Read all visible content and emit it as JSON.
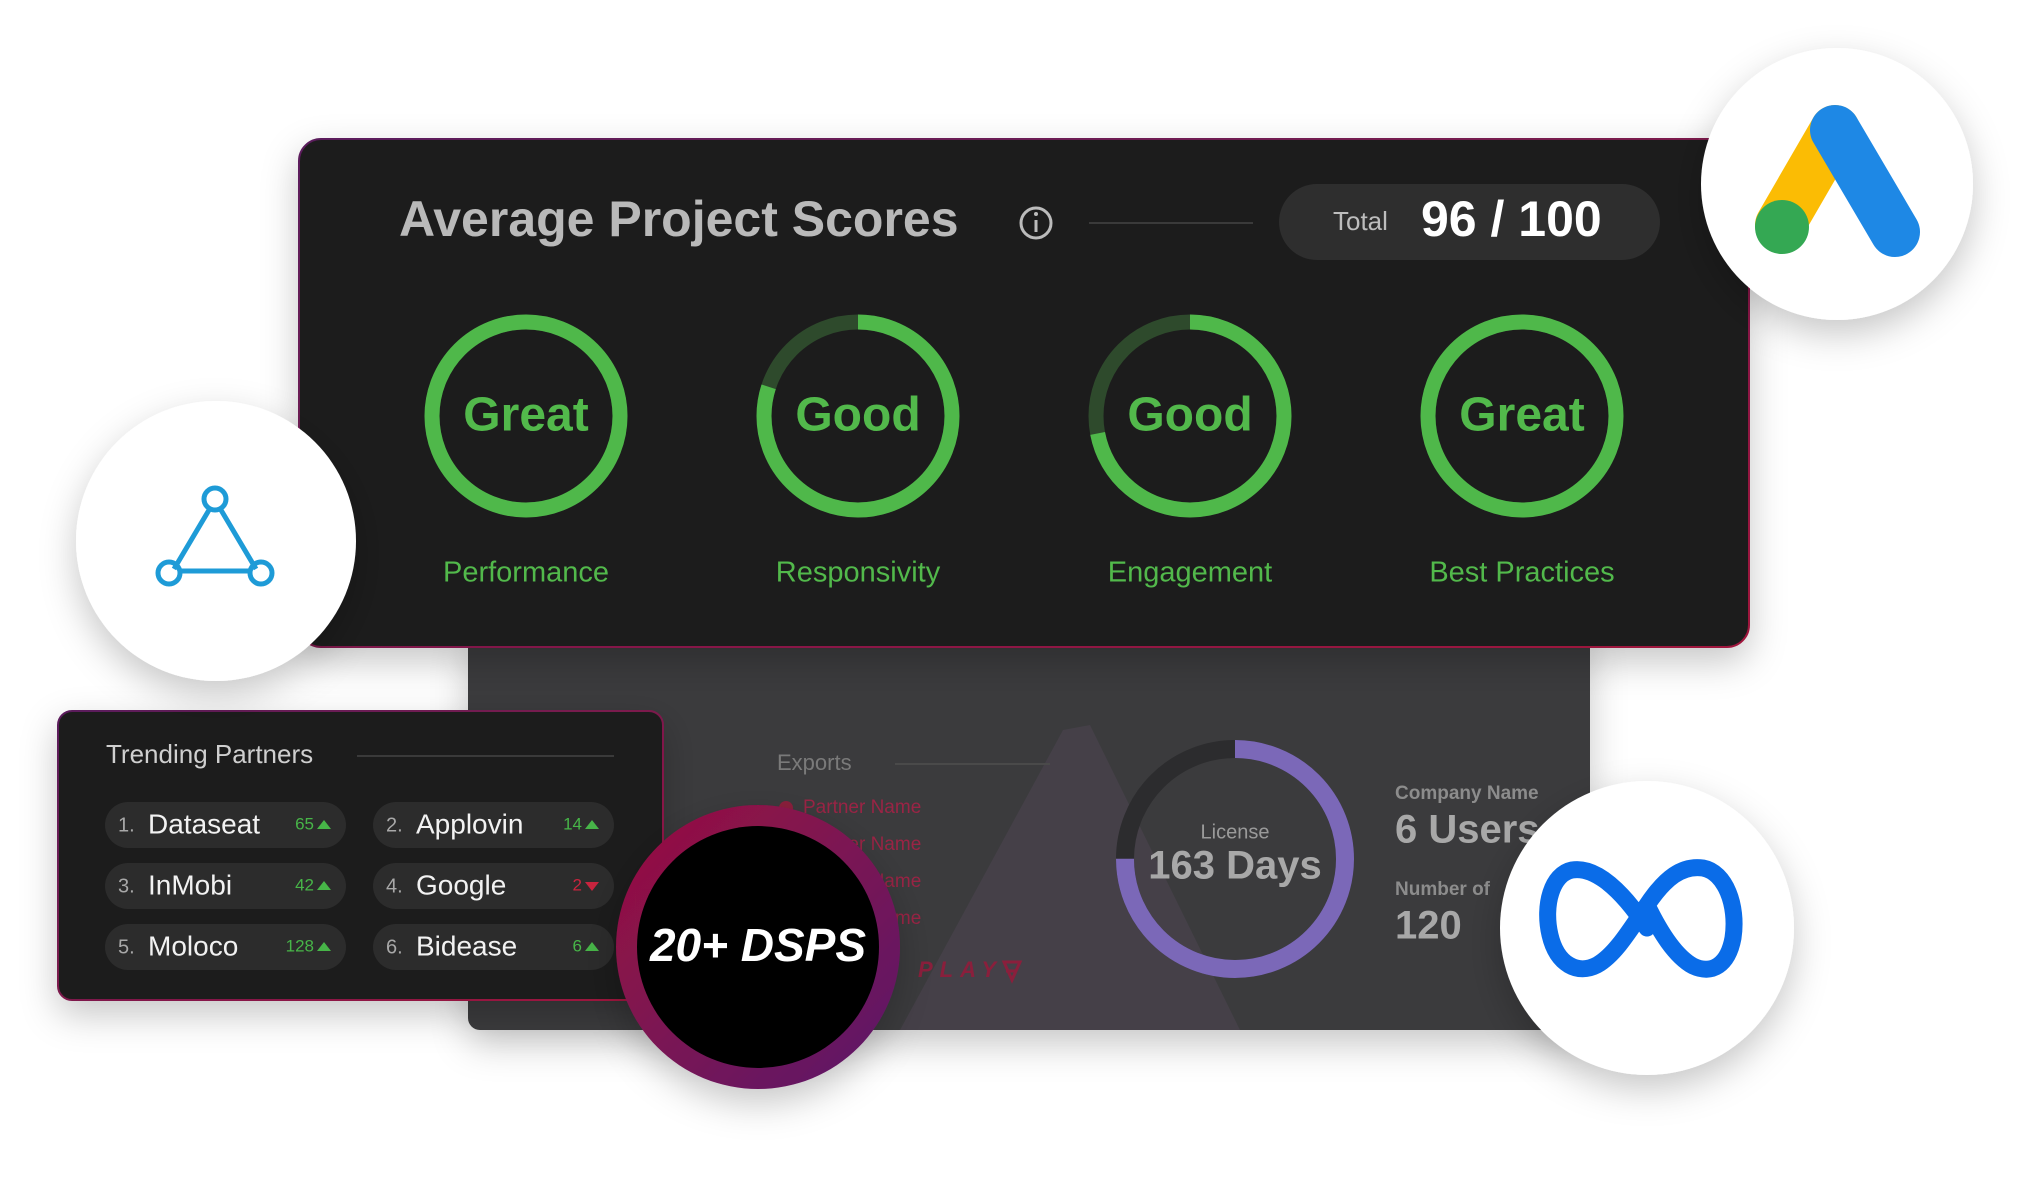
{
  "header": {
    "title": "Average Project Scores",
    "total_label": "Total",
    "total_value": "96 / 100"
  },
  "scores": [
    {
      "rating": "Great",
      "label": "Performance",
      "progress": 100
    },
    {
      "rating": "Good",
      "label": "Responsivity",
      "progress": 80
    },
    {
      "rating": "Good",
      "label": "Engagement",
      "progress": 72
    },
    {
      "rating": "Great",
      "label": "Best Practices",
      "progress": 100
    }
  ],
  "dashboard": {
    "exports_title": "Exports",
    "partners": [
      "Partner Name",
      "Partner Name",
      "Partner Name",
      "Partner Name"
    ],
    "license_label": "License",
    "license_value": "163 Days",
    "license_progress": 75,
    "company_label": "Company Name",
    "company_value": "6 Users",
    "count_label": "Number of",
    "count_value": "120",
    "brand": "PLAY"
  },
  "trending": {
    "title": "Trending Partners",
    "partners": [
      {
        "rank": "1.",
        "name": "Dataseat",
        "count": 65,
        "trend": "up"
      },
      {
        "rank": "2.",
        "name": "Applovin",
        "count": 14,
        "trend": "up"
      },
      {
        "rank": "3.",
        "name": "InMobi",
        "count": 42,
        "trend": "up"
      },
      {
        "rank": "4.",
        "name": "Google",
        "count": 2,
        "trend": "down"
      },
      {
        "rank": "5.",
        "name": "Moloco",
        "count": 128,
        "trend": "up"
      },
      {
        "rank": "6.",
        "name": "Bidease",
        "count": 6,
        "trend": "up"
      }
    ]
  },
  "badge": "20+ DSPS"
}
